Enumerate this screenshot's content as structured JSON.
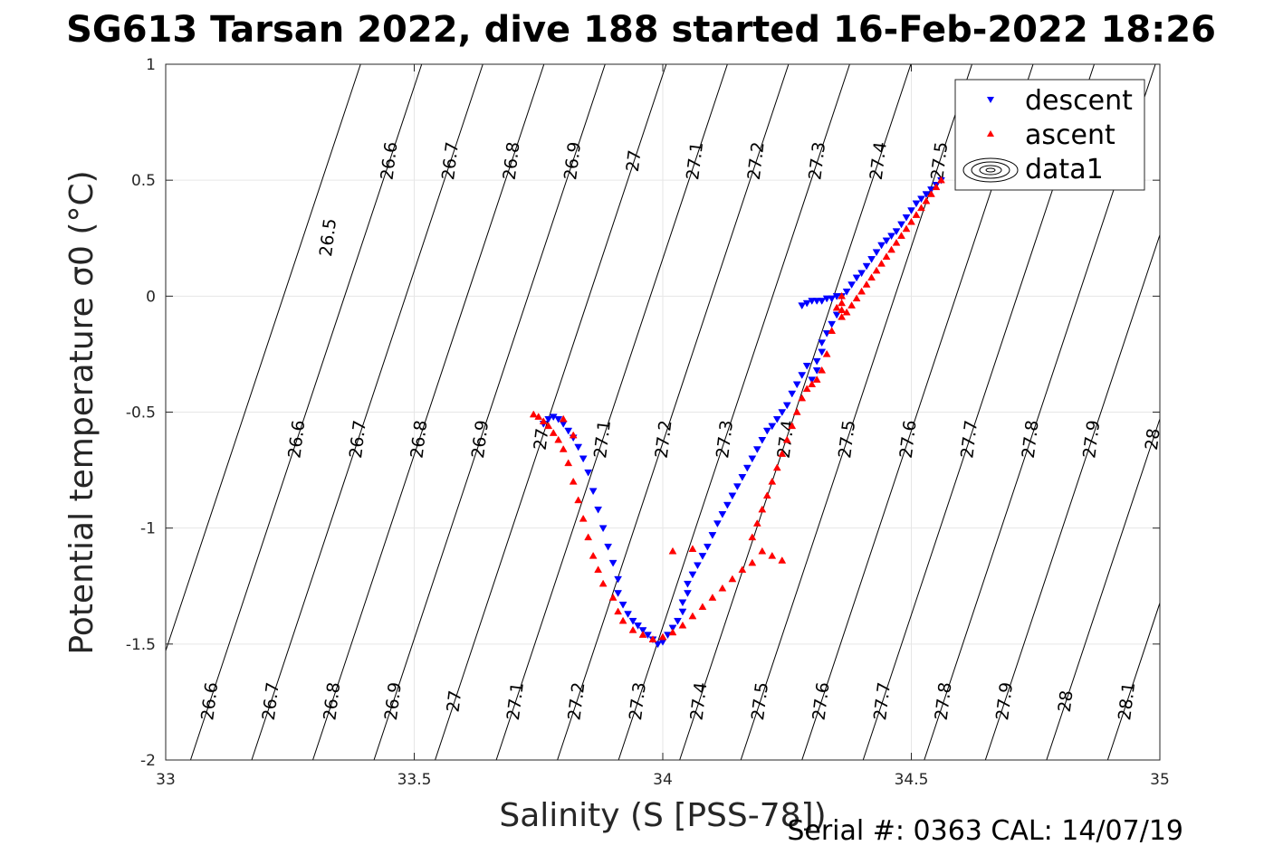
{
  "title": "SG613 Tarsan 2022, dive 188 started 16-Feb-2022 18:26",
  "footer": "Serial #: 0363  CAL: 14/07/19",
  "chart_data": {
    "type": "scatter",
    "title": "SG613 Tarsan 2022, dive 188 started 16-Feb-2022 18:26",
    "xlabel": "Salinity (S [PSS-78])",
    "ylabel": "Potential temperature σ0 (°C)",
    "xlim": [
      33,
      35
    ],
    "ylim": [
      -2,
      1
    ],
    "xticks": [
      33,
      33.5,
      34,
      34.5,
      35
    ],
    "xtick_labels": [
      "33",
      "33.5",
      "34",
      "34.5",
      "35"
    ],
    "yticks": [
      1,
      0.5,
      0,
      -0.5,
      -1,
      -1.5,
      -2
    ],
    "ytick_labels": [
      "1",
      "0.5",
      "0",
      "-0.5",
      "-1",
      "-1.5",
      "-2"
    ],
    "grid": true,
    "legend_position": "top-right",
    "series": [
      {
        "name": "descent",
        "marker": "triangle-down",
        "color": "#0000ff",
        "points": [
          [
            34.56,
            0.5
          ],
          [
            34.55,
            0.48
          ],
          [
            34.54,
            0.46
          ],
          [
            34.53,
            0.44
          ],
          [
            34.52,
            0.42
          ],
          [
            34.51,
            0.4
          ],
          [
            34.5,
            0.37
          ],
          [
            34.49,
            0.34
          ],
          [
            34.48,
            0.31
          ],
          [
            34.47,
            0.28
          ],
          [
            34.46,
            0.26
          ],
          [
            34.45,
            0.24
          ],
          [
            34.44,
            0.22
          ],
          [
            34.43,
            0.19
          ],
          [
            34.42,
            0.16
          ],
          [
            34.41,
            0.13
          ],
          [
            34.4,
            0.1
          ],
          [
            34.39,
            0.08
          ],
          [
            34.38,
            0.05
          ],
          [
            34.37,
            0.02
          ],
          [
            34.36,
            0.0
          ],
          [
            34.35,
            0.0
          ],
          [
            34.34,
            -0.01
          ],
          [
            34.33,
            -0.01
          ],
          [
            34.32,
            -0.02
          ],
          [
            34.31,
            -0.02
          ],
          [
            34.3,
            -0.02
          ],
          [
            34.29,
            -0.03
          ],
          [
            34.28,
            -0.04
          ],
          [
            34.35,
            -0.08
          ],
          [
            34.34,
            -0.12
          ],
          [
            34.33,
            -0.16
          ],
          [
            34.32,
            -0.2
          ],
          [
            34.32,
            -0.24
          ],
          [
            34.31,
            -0.28
          ],
          [
            34.31,
            -0.32
          ],
          [
            34.3,
            -0.36
          ],
          [
            34.29,
            -0.3
          ],
          [
            34.28,
            -0.34
          ],
          [
            34.27,
            -0.38
          ],
          [
            34.26,
            -0.42
          ],
          [
            34.25,
            -0.47
          ],
          [
            34.24,
            -0.5
          ],
          [
            34.23,
            -0.53
          ],
          [
            34.22,
            -0.56
          ],
          [
            34.21,
            -0.58
          ],
          [
            34.2,
            -0.62
          ],
          [
            34.19,
            -0.66
          ],
          [
            34.18,
            -0.7
          ],
          [
            34.17,
            -0.74
          ],
          [
            34.16,
            -0.78
          ],
          [
            34.15,
            -0.82
          ],
          [
            34.14,
            -0.86
          ],
          [
            34.13,
            -0.9
          ],
          [
            34.12,
            -0.94
          ],
          [
            34.11,
            -0.98
          ],
          [
            34.1,
            -1.03
          ],
          [
            34.09,
            -1.08
          ],
          [
            34.08,
            -1.12
          ],
          [
            34.07,
            -1.16
          ],
          [
            34.06,
            -1.2
          ],
          [
            34.05,
            -1.24
          ],
          [
            34.05,
            -1.28
          ],
          [
            34.04,
            -1.32
          ],
          [
            34.04,
            -1.36
          ],
          [
            34.03,
            -1.4
          ],
          [
            34.02,
            -1.43
          ],
          [
            34.01,
            -1.46
          ],
          [
            34.0,
            -1.49
          ],
          [
            33.99,
            -1.5
          ],
          [
            33.98,
            -1.48
          ],
          [
            33.97,
            -1.46
          ],
          [
            33.96,
            -1.44
          ],
          [
            33.95,
            -1.42
          ],
          [
            33.94,
            -1.4
          ],
          [
            33.93,
            -1.37
          ],
          [
            33.92,
            -1.33
          ],
          [
            33.91,
            -1.28
          ],
          [
            33.91,
            -1.22
          ],
          [
            33.9,
            -1.15
          ],
          [
            33.89,
            -1.08
          ],
          [
            33.88,
            -1.0
          ],
          [
            33.87,
            -0.92
          ],
          [
            33.86,
            -0.84
          ],
          [
            33.85,
            -0.76
          ],
          [
            33.84,
            -0.7
          ],
          [
            33.83,
            -0.65
          ],
          [
            33.82,
            -0.61
          ],
          [
            33.81,
            -0.58
          ],
          [
            33.8,
            -0.55
          ],
          [
            33.79,
            -0.53
          ],
          [
            33.78,
            -0.52
          ],
          [
            33.77,
            -0.53
          ],
          [
            33.76,
            -0.55
          ]
        ]
      },
      {
        "name": "ascent",
        "marker": "triangle-up",
        "color": "#ff0000",
        "points": [
          [
            34.56,
            0.5
          ],
          [
            34.55,
            0.47
          ],
          [
            34.54,
            0.44
          ],
          [
            34.53,
            0.41
          ],
          [
            34.52,
            0.38
          ],
          [
            34.51,
            0.35
          ],
          [
            34.5,
            0.32
          ],
          [
            34.49,
            0.29
          ],
          [
            34.48,
            0.26
          ],
          [
            34.47,
            0.23
          ],
          [
            34.46,
            0.2
          ],
          [
            34.45,
            0.17
          ],
          [
            34.44,
            0.14
          ],
          [
            34.43,
            0.11
          ],
          [
            34.42,
            0.08
          ],
          [
            34.41,
            0.05
          ],
          [
            34.4,
            0.02
          ],
          [
            34.39,
            -0.01
          ],
          [
            34.38,
            -0.04
          ],
          [
            34.37,
            -0.07
          ],
          [
            34.36,
            -0.09
          ],
          [
            34.36,
            -0.06
          ],
          [
            34.36,
            -0.03
          ],
          [
            34.36,
            0.0
          ],
          [
            34.35,
            -0.05
          ],
          [
            34.34,
            -0.15
          ],
          [
            34.33,
            -0.25
          ],
          [
            34.32,
            -0.32
          ],
          [
            34.31,
            -0.36
          ],
          [
            34.3,
            -0.38
          ],
          [
            34.29,
            -0.4
          ],
          [
            34.28,
            -0.44
          ],
          [
            34.27,
            -0.5
          ],
          [
            34.26,
            -0.56
          ],
          [
            34.25,
            -0.62
          ],
          [
            34.24,
            -0.68
          ],
          [
            34.23,
            -0.74
          ],
          [
            34.22,
            -0.8
          ],
          [
            34.21,
            -0.86
          ],
          [
            34.2,
            -0.92
          ],
          [
            34.19,
            -0.98
          ],
          [
            34.18,
            -1.04
          ],
          [
            34.2,
            -1.1
          ],
          [
            34.22,
            -1.12
          ],
          [
            34.24,
            -1.14
          ],
          [
            34.18,
            -1.15
          ],
          [
            34.16,
            -1.18
          ],
          [
            34.14,
            -1.22
          ],
          [
            34.12,
            -1.26
          ],
          [
            34.1,
            -1.3
          ],
          [
            34.08,
            -1.34
          ],
          [
            34.06,
            -1.38
          ],
          [
            34.04,
            -1.42
          ],
          [
            34.02,
            -1.45
          ],
          [
            34.0,
            -1.47
          ],
          [
            33.98,
            -1.48
          ],
          [
            33.96,
            -1.46
          ],
          [
            33.94,
            -1.44
          ],
          [
            33.92,
            -1.4
          ],
          [
            33.91,
            -1.36
          ],
          [
            33.9,
            -1.3
          ],
          [
            33.88,
            -1.24
          ],
          [
            33.87,
            -1.18
          ],
          [
            33.86,
            -1.12
          ],
          [
            33.85,
            -1.04
          ],
          [
            33.84,
            -0.96
          ],
          [
            33.83,
            -0.88
          ],
          [
            33.82,
            -0.8
          ],
          [
            33.81,
            -0.72
          ],
          [
            33.8,
            -0.66
          ],
          [
            33.79,
            -0.62
          ],
          [
            33.78,
            -0.59
          ],
          [
            33.77,
            -0.56
          ],
          [
            33.76,
            -0.54
          ],
          [
            33.75,
            -0.52
          ],
          [
            33.74,
            -0.51
          ],
          [
            33.8,
            -0.53
          ],
          [
            33.82,
            -0.6
          ],
          [
            34.02,
            -1.1
          ],
          [
            34.06,
            -1.09
          ]
        ]
      }
    ],
    "legend_extra": "data1",
    "isopycnals": [
      26.5,
      26.6,
      26.7,
      26.8,
      26.9,
      27,
      27.1,
      27.2,
      27.3,
      27.4,
      27.5,
      27.6,
      27.7,
      27.8,
      27.9,
      28,
      28.1
    ],
    "isopycnal_labels": [
      "26.5",
      "26.6",
      "26.7",
      "26.8",
      "26.9",
      "27",
      "27.1",
      "27.2",
      "27.3",
      "27.4",
      "27.5",
      "27.6",
      "27.7",
      "27.8",
      "27.9",
      "28",
      "28.1"
    ]
  }
}
